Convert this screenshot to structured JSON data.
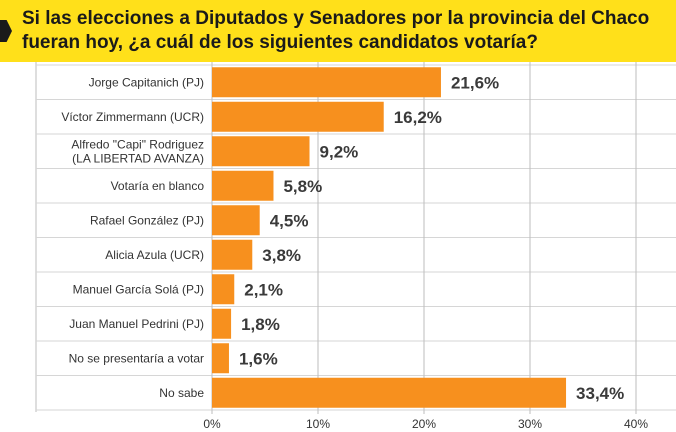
{
  "header": {
    "title_line1": "Si las elecciones a Diputados y Senadores por la provincia del Chaco",
    "title_line2": "fueran hoy, ¿a cuál de los siguientes candidatos votaría?"
  },
  "colors": {
    "header_bg": "#ffe01a",
    "bar": "#f7901e",
    "grid": "#bdbdbd",
    "text": "#333333"
  },
  "chart_data": {
    "type": "bar",
    "orientation": "horizontal",
    "categories": [
      [
        "Jorge Capitanich (PJ)"
      ],
      [
        "Víctor Zimmermann (UCR)"
      ],
      [
        "Alfredo \"Capi\" Rodriguez",
        "(LA LIBERTAD AVANZA)"
      ],
      [
        "Votaría en blanco"
      ],
      [
        "Rafael González (PJ)"
      ],
      [
        "Alicia Azula (UCR)"
      ],
      [
        "Manuel García Solá (PJ)"
      ],
      [
        "Juan Manuel Pedrini (PJ)"
      ],
      [
        "No se presentaría a votar"
      ],
      [
        "No sabe"
      ]
    ],
    "values": [
      21.6,
      16.2,
      9.2,
      5.8,
      4.5,
      3.8,
      2.1,
      1.8,
      1.6,
      33.4
    ],
    "value_labels": [
      "21,6%",
      "16,2%",
      "9,2%",
      "5,8%",
      "4,5%",
      "3,8%",
      "2,1%",
      "1,8%",
      "1,6%",
      "33,4%"
    ],
    "xlim": [
      0,
      40
    ],
    "ticks": [
      0,
      10,
      20,
      30,
      40
    ],
    "tick_labels": [
      "0%",
      "10%",
      "20%",
      "30%",
      "40%"
    ],
    "grid": true
  }
}
